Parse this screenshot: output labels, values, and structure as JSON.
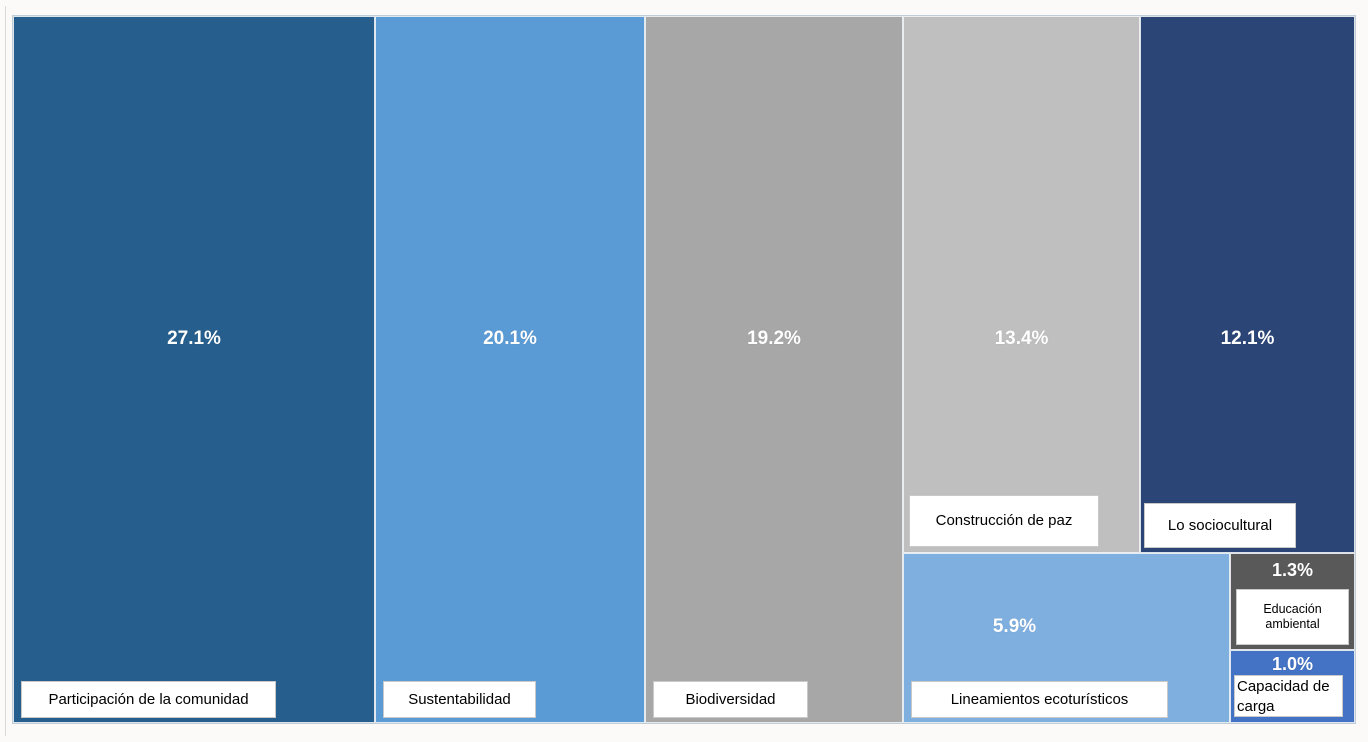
{
  "chart_data": {
    "type": "treemap",
    "title": "",
    "legend": "none",
    "value_format": "percent",
    "items": [
      {
        "label": "Participación de la comunidad",
        "value_pct": 27.1,
        "pct_label": "27.1%",
        "color": "#265F8D"
      },
      {
        "label": "Sustentabilidad",
        "value_pct": 20.1,
        "pct_label": "20.1%",
        "color": "#5B9BD5"
      },
      {
        "label": "Biodiversidad",
        "value_pct": 19.2,
        "pct_label": "19.2%",
        "color": "#A7A7A7"
      },
      {
        "label": "Construcción de paz",
        "value_pct": 13.4,
        "pct_label": "13.4%",
        "color": "#BFBFBF"
      },
      {
        "label": "Lo sociocultural",
        "value_pct": 12.1,
        "pct_label": "12.1%",
        "color": "#2B4577"
      },
      {
        "label": "Lineamientos ecoturísticos",
        "value_pct": 5.9,
        "pct_label": "5.9%",
        "color": "#7FAFDF"
      },
      {
        "label": "Educación ambiental",
        "value_pct": 1.3,
        "pct_label": "1.3%",
        "color": "#595959"
      },
      {
        "label": "Capacidad de carga",
        "value_pct": 1.0,
        "pct_label": "1.0%",
        "color": "#4472C4"
      }
    ]
  }
}
